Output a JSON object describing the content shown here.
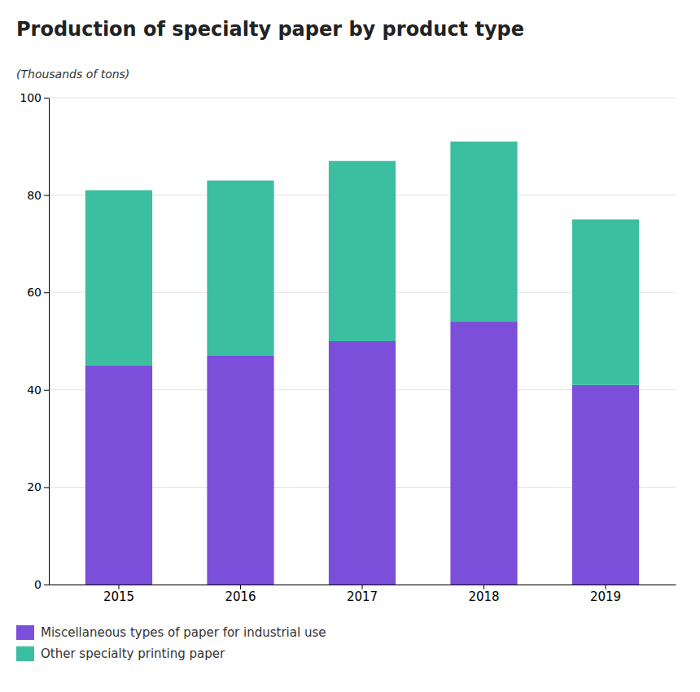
{
  "chart_data": {
    "type": "bar",
    "title": "Production of specialty paper by product type",
    "y_label": "(Thousands of tons)",
    "categories": [
      "2015",
      "2016",
      "2017",
      "2018",
      "2019"
    ],
    "series": [
      {
        "name": "Miscellaneous types of paper for industrial use",
        "color": "#7B4FD9",
        "values": [
          45,
          47,
          50,
          54,
          41
        ]
      },
      {
        "name": "Other specialty printing paper",
        "color": "#3BBFA0",
        "values": [
          36,
          36,
          37,
          37,
          34
        ]
      }
    ],
    "ylim": [
      0,
      100
    ],
    "yticks": [
      0,
      20,
      40,
      60,
      80,
      100
    ],
    "grid": true,
    "stacked": true,
    "legend": "bottom"
  }
}
